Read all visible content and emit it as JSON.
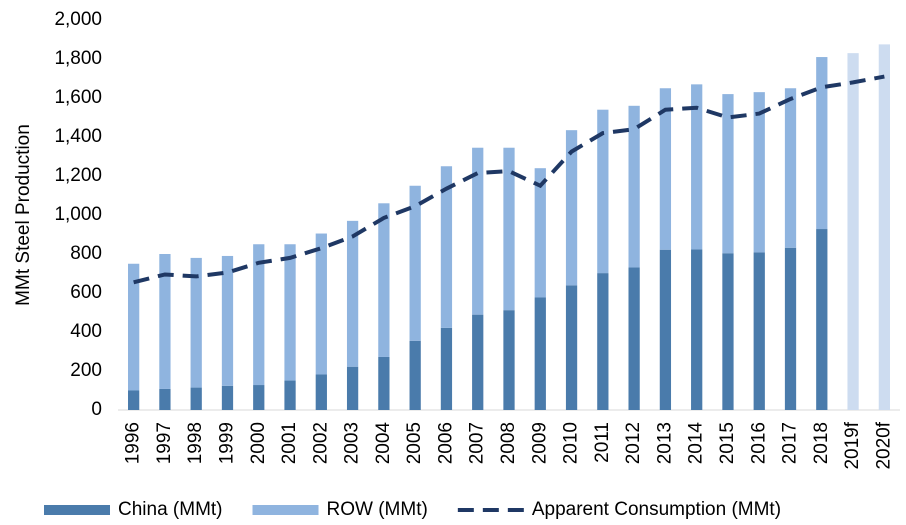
{
  "chart_data": {
    "type": "bar_line",
    "ylabel": "MMt Steel Production",
    "categories": [
      "1996",
      "1997",
      "1998",
      "1999",
      "2000",
      "2001",
      "2002",
      "2003",
      "2004",
      "2005",
      "2006",
      "2007",
      "2008",
      "2009",
      "2010",
      "2011",
      "2012",
      "2013",
      "2014",
      "2015",
      "2016",
      "2017",
      "2018",
      "2019f",
      "2020f"
    ],
    "series": [
      {
        "name": "China (MMt)",
        "kind": "bar",
        "color": "#4a7bab",
        "values": [
          100,
          108,
          115,
          124,
          128,
          151,
          182,
          222,
          272,
          355,
          421,
          489,
          512,
          577,
          639,
          702,
          731,
          822,
          823,
          804,
          808,
          832,
          928,
          null,
          null
        ]
      },
      {
        "name": "ROW (MMt)",
        "kind": "bar",
        "color": "#8fb4df",
        "point_colors": [
          null,
          null,
          null,
          null,
          null,
          null,
          null,
          null,
          null,
          null,
          null,
          null,
          null,
          null,
          null,
          null,
          null,
          null,
          null,
          null,
          null,
          null,
          null,
          "#cddcf0",
          "#cddcf0"
        ],
        "values": [
          650,
          692,
          665,
          666,
          722,
          699,
          723,
          748,
          788,
          795,
          829,
          856,
          833,
          663,
          796,
          838,
          829,
          828,
          847,
          816,
          822,
          818,
          882,
          1830,
          1875
        ]
      },
      {
        "name": "Apparent Consumption (MMt)",
        "kind": "line",
        "color": "#1f3864",
        "dashed": true,
        "values": [
          655,
          695,
          685,
          705,
          755,
          780,
          830,
          890,
          985,
          1045,
          1135,
          1215,
          1225,
          1150,
          1325,
          1420,
          1440,
          1540,
          1550,
          1500,
          1520,
          1595,
          1655,
          1680,
          1710
        ]
      }
    ],
    "ylim": [
      0,
      2000
    ],
    "yticks": [
      0,
      200,
      400,
      600,
      800,
      {
        "value": 1000,
        "label": "1,000"
      },
      {
        "value": 1200,
        "label": "1,200"
      },
      {
        "value": 1400,
        "label": "1,400"
      },
      {
        "value": 1600,
        "label": "1,600"
      },
      {
        "value": 1800,
        "label": "1,800"
      },
      {
        "value": 2000,
        "label": "2,000"
      }
    ],
    "grid": false,
    "legend": "bottom"
  }
}
